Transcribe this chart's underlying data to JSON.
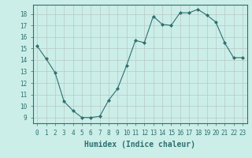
{
  "x": [
    0,
    1,
    2,
    3,
    4,
    5,
    6,
    7,
    8,
    9,
    10,
    11,
    12,
    13,
    14,
    15,
    16,
    17,
    18,
    19,
    20,
    21,
    22,
    23
  ],
  "y": [
    15.2,
    14.1,
    12.9,
    10.4,
    9.6,
    9.0,
    9.0,
    9.1,
    10.5,
    11.5,
    13.5,
    15.7,
    15.5,
    17.8,
    17.1,
    17.0,
    18.1,
    18.1,
    18.4,
    17.9,
    17.3,
    15.5,
    14.2,
    14.2
  ],
  "line_color": "#2d7070",
  "marker": "D",
  "marker_size": 2.0,
  "bg_color": "#cceee8",
  "grid_color": "#b8c8c4",
  "xlabel": "Humidex (Indice chaleur)",
  "xlim": [
    -0.5,
    23.5
  ],
  "ylim": [
    8.5,
    18.8
  ],
  "yticks": [
    9,
    10,
    11,
    12,
    13,
    14,
    15,
    16,
    17,
    18
  ],
  "xticks": [
    0,
    1,
    2,
    3,
    4,
    5,
    6,
    7,
    8,
    9,
    10,
    11,
    12,
    13,
    14,
    15,
    16,
    17,
    18,
    19,
    20,
    21,
    22,
    23
  ],
  "tick_fontsize": 5.5,
  "label_fontsize": 7.0
}
